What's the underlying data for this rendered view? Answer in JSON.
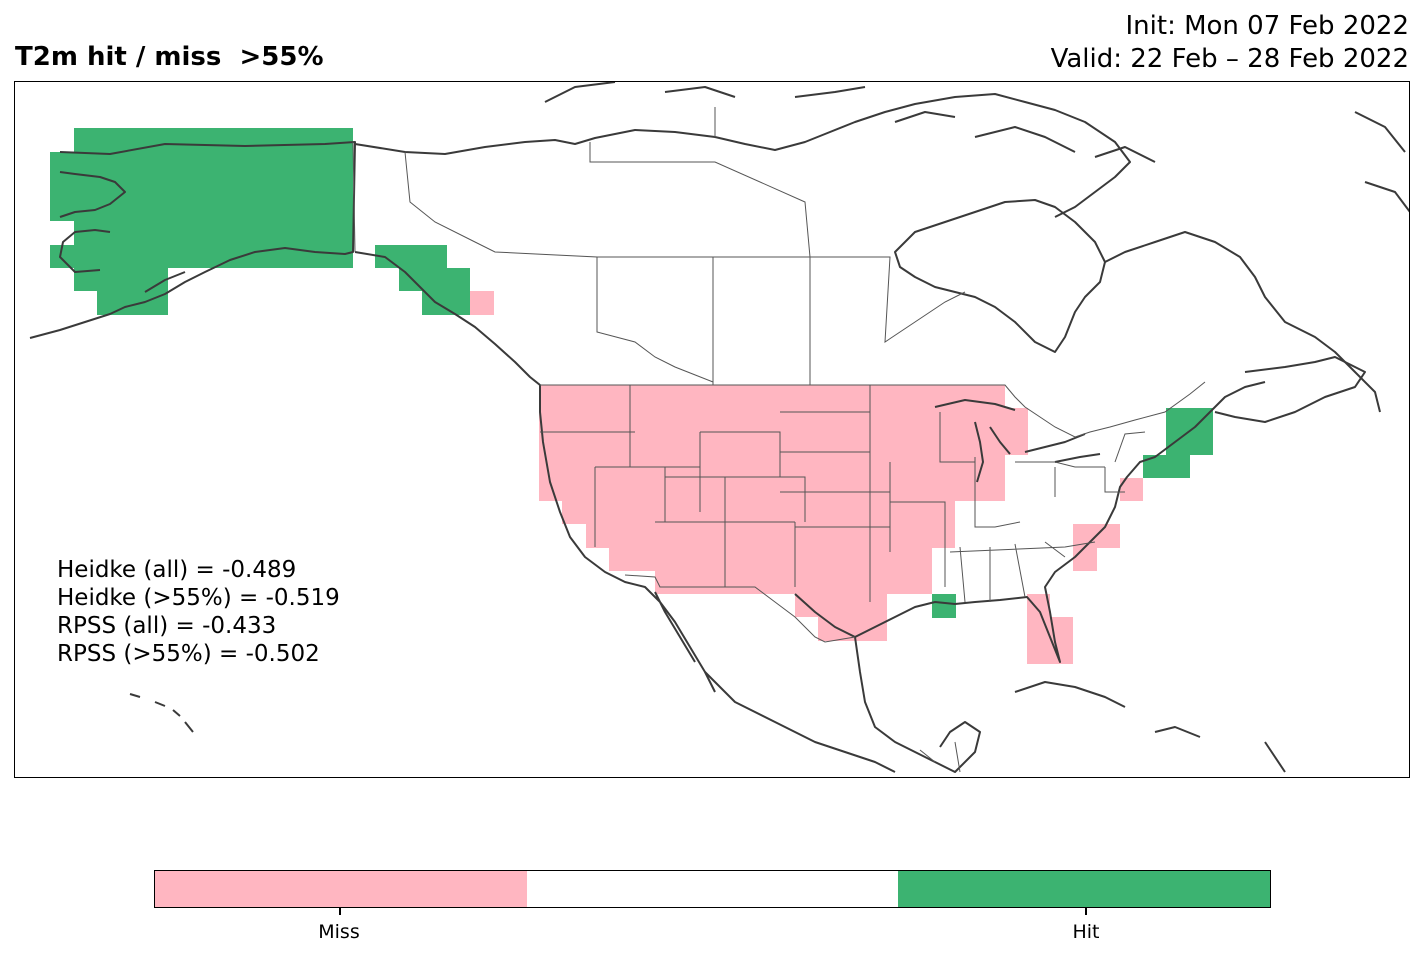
{
  "header": {
    "title": "T2m hit / miss  >55%",
    "init": "Init: Mon 07 Feb 2022",
    "valid": "Valid: 22 Feb – 28 Feb 2022"
  },
  "stats": {
    "heidke_all": "Heidke (all) = -0.489",
    "heidke_55": "Heidke (>55%) = -0.519",
    "rpss_all": "RPSS (all) = -0.433",
    "rpss_55": "RPSS (>55%) = -0.502"
  },
  "legend": {
    "miss_label": "Miss",
    "hit_label": "Hit",
    "colors": {
      "miss": "#ffb6c1",
      "neutral": "#ffffff",
      "hit": "#3cb371"
    }
  },
  "map": {
    "region": "North America",
    "outcomes": [
      {
        "area": "Alaska",
        "outcome": "hit"
      },
      {
        "area": "Southeast Alaska coast",
        "outcome": "hit"
      },
      {
        "area": "British Columbia coast patch",
        "outcome": "miss"
      },
      {
        "area": "Western and Central US",
        "outcome": "miss"
      },
      {
        "area": "Great Lakes / Michigan / Illinois",
        "outcome": "miss"
      },
      {
        "area": "Texas and Gulf Coast",
        "outcome": "miss"
      },
      {
        "area": "Florida peninsula",
        "outcome": "miss"
      },
      {
        "area": "Mid-Atlantic coast",
        "outcome": "miss"
      },
      {
        "area": "New England / Maine",
        "outcome": "hit"
      },
      {
        "area": "Mississippi coast point",
        "outcome": "hit"
      }
    ]
  }
}
